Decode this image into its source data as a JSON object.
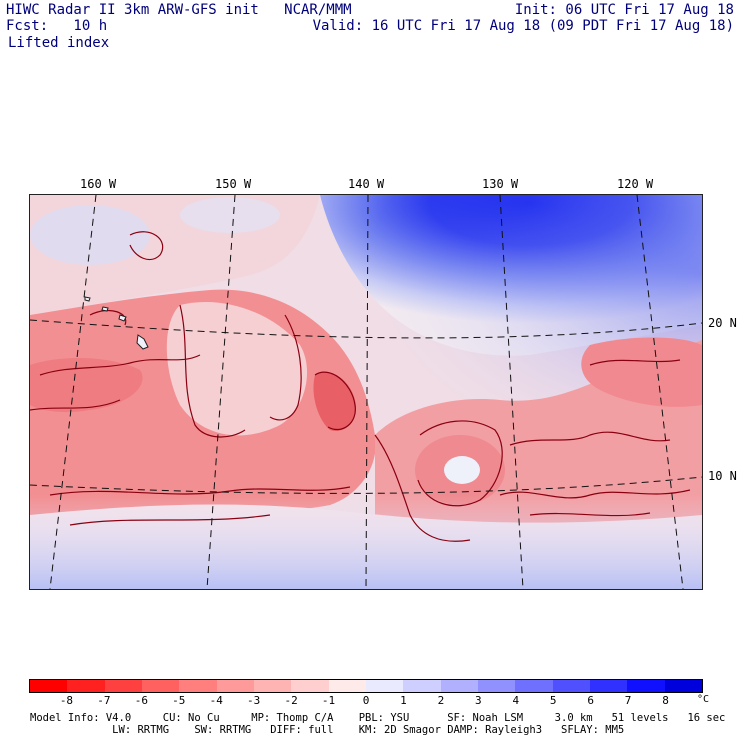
{
  "header": {
    "title_left": "HIWC Radar II 3km ARW-GFS init   NCAR/MMM",
    "fcst": "Fcst:   10 h",
    "field": "Lifted index",
    "init": "Init: 06 UTC Fri 17 Aug 18",
    "valid": "Valid: 16 UTC Fri 17 Aug 18 (09 PDT Fri 17 Aug 18)"
  },
  "map": {
    "lon_labels": [
      "160 W",
      "150 W",
      "140 W",
      "130 W",
      "120 W"
    ],
    "lat_labels": [
      "20 N",
      "10 N"
    ]
  },
  "colorbar": {
    "labels": [
      "-8",
      "-7",
      "-6",
      "-5",
      "-4",
      "-3",
      "-2",
      "-1",
      "0",
      "1",
      "2",
      "3",
      "4",
      "5",
      "6",
      "7",
      "8"
    ],
    "unit": "°C",
    "colors": [
      "#ff0000",
      "#ff2020",
      "#ff4040",
      "#ff6060",
      "#ff7f7f",
      "#ff9a9a",
      "#ffb4b4",
      "#ffcfcf",
      "#ffeaea",
      "#eaeaff",
      "#cfcfff",
      "#b0b0ff",
      "#9090ff",
      "#7070ff",
      "#5050ff",
      "#3030ff",
      "#1010ff",
      "#0000dd"
    ]
  },
  "model_info": {
    "line1": "Model Info: V4.0     CU: No Cu     MP: Thomp C/A    PBL: YSU      SF: Noah LSM     3.0 km   51 levels   16 sec",
    "line2": "             LW: RRTMG    SW: RRTMG   DIFF: full    KM: 2D Smagor DAMP: Rayleigh3   SFLAY: MM5"
  }
}
